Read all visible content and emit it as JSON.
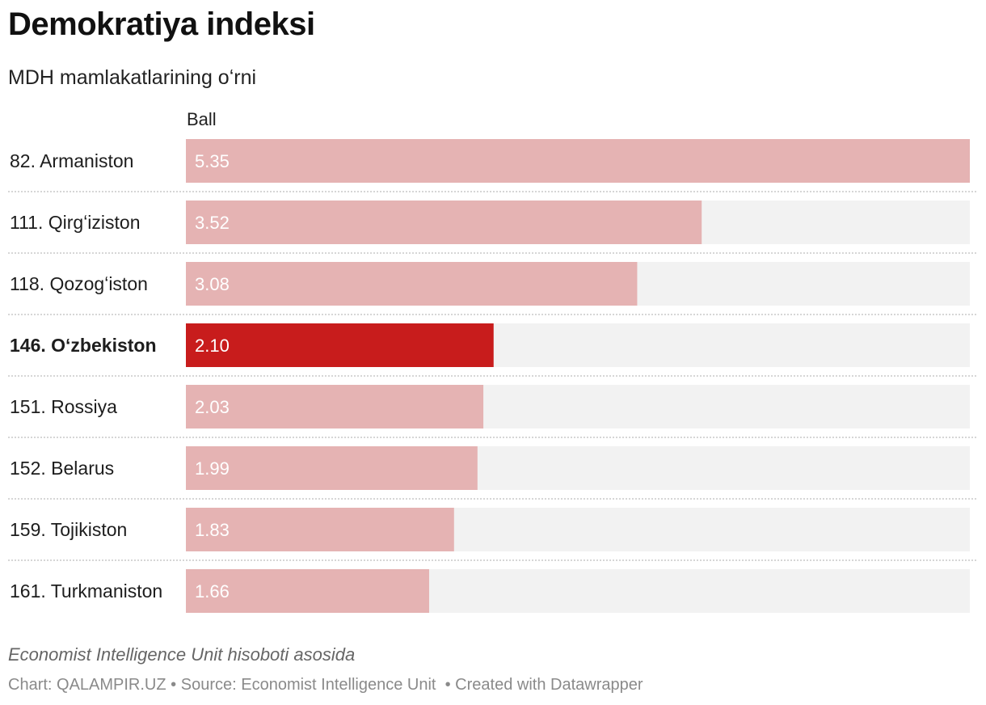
{
  "chart_data": {
    "type": "bar",
    "orientation": "horizontal",
    "title": "Demokratiya indeksi",
    "subtitle": "MDH mamlakatlarining oʻrni",
    "value_column_header": "Ball",
    "categories": [
      "82. Armaniston",
      "111. Qirgʻiziston",
      "118. Qozogʻiston",
      "146. Oʻzbekiston",
      "151. Rossiya",
      "152. Belarus",
      "159. Tojikiston",
      "161. Turkmaniston"
    ],
    "values": [
      5.35,
      3.52,
      3.08,
      2.1,
      2.03,
      1.99,
      1.83,
      1.66
    ],
    "value_labels": [
      "5.35",
      "3.52",
      "3.08",
      "2.10",
      "2.03",
      "1.99",
      "1.83",
      "1.66"
    ],
    "highlight_index": 3,
    "xlim": [
      0,
      5.35
    ],
    "colors": {
      "bar": "#e5b3b3",
      "bar_highlight": "#c81c1c",
      "track": "#f2f2f2",
      "value_text": "#ffffff",
      "separator": "#c8c8c8"
    }
  },
  "notes": "Economist Intelligence Unit hisoboti asosida",
  "footer": {
    "chart_by": "Chart: QALAMPIR.UZ",
    "source": "Source: Economist Intelligence Unit",
    "created_with": "Created with Datawrapper",
    "separator": "•"
  }
}
